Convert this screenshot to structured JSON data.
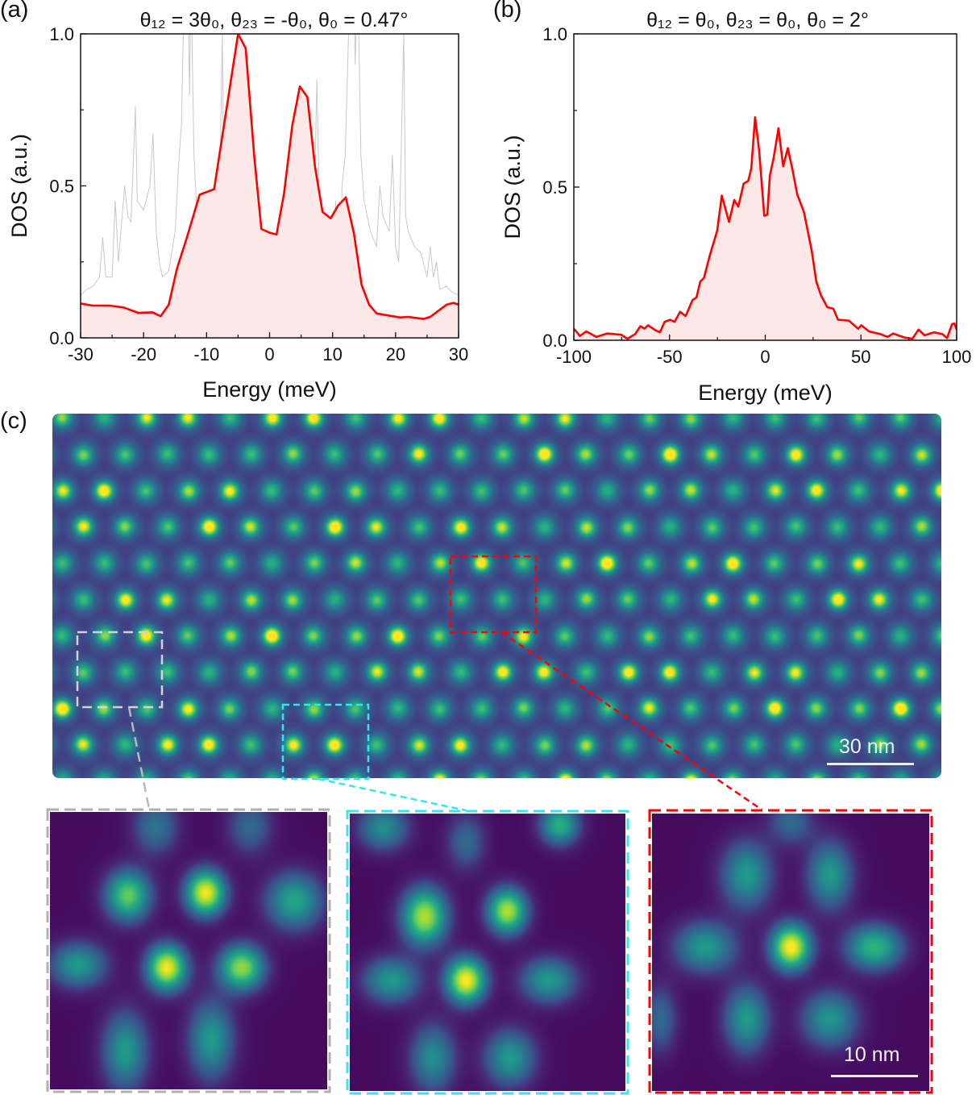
{
  "chart_data": [
    {
      "panel_label": "(a)",
      "type": "line",
      "title": "θ₁₂ = 3θ₀, θ₂₃ = -θ₀, θ₀ = 0.47°",
      "xlabel": "Energy (meV)",
      "ylabel": "DOS (a.u.)",
      "xlim": [
        -30,
        30
      ],
      "ylim": [
        0,
        1.0
      ],
      "x_ticks": [
        -30,
        -20,
        -10,
        0,
        10,
        20,
        30
      ],
      "x_tick_labels": [
        "-30",
        "-20",
        "-10",
        "0",
        "10",
        "20",
        "30"
      ],
      "y_ticks": [
        0,
        0.5,
        1.0
      ],
      "y_tick_labels": [
        "0.0",
        "0.5",
        "1.0"
      ],
      "grid": false,
      "series": [
        {
          "color": "#777777",
          "style": "thin-gray",
          "x": [
            -30,
            -29,
            -28,
            -27,
            -26.5,
            -26,
            -25,
            -24.5,
            -24,
            -23,
            -22.5,
            -22,
            -21.3,
            -21,
            -20,
            -19,
            -18.5,
            -18,
            -17.5,
            -17,
            -16,
            -15,
            -14.5,
            -14,
            -13.5,
            -13,
            -12.7,
            -12.5,
            -12,
            -11.5,
            -11,
            -10.8,
            -10.5,
            -10,
            -9.5,
            -9,
            -8.5,
            -8,
            -7.5,
            -7.2,
            -7,
            -6,
            -5,
            -4,
            -3,
            -2,
            -1.5,
            -1,
            0,
            1,
            1.5,
            2,
            3,
            4,
            5,
            6,
            7,
            7.5,
            8,
            9,
            10,
            10.5,
            11,
            11.5,
            12,
            12.8,
            13.3,
            13.6,
            14,
            14.5,
            15,
            16,
            17,
            17.5,
            18,
            19,
            19.5,
            20,
            20.5,
            21.3,
            21.6,
            22,
            23,
            24,
            25,
            25.5,
            26,
            26.5,
            27,
            28,
            29,
            30
          ],
          "y": [
            0.14,
            0.16,
            0.17,
            0.2,
            0.33,
            0.2,
            0.2,
            0.45,
            0.25,
            0.5,
            0.4,
            0.38,
            0.76,
            0.45,
            0.42,
            0.5,
            0.67,
            0.35,
            0.25,
            0.2,
            0.22,
            0.35,
            0.55,
            0.7,
            1.2,
            1.2,
            0.8,
            1.2,
            0.6,
            0.4,
            0.25,
            0.1,
            0.35,
            0.33,
            0.25,
            0.3,
            0.35,
            0.4,
            1.0,
            0.3,
            0.2,
            0.15,
            0.1,
            0.07,
            0.05,
            0.1,
            0.03,
            0.01,
            0.0,
            0.02,
            0.1,
            0.05,
            0.06,
            0.1,
            0.14,
            0.18,
            0.3,
            0.85,
            0.35,
            0.4,
            0.3,
            0.45,
            0.1,
            0.5,
            0.6,
            1.2,
            1.2,
            0.9,
            1.2,
            0.6,
            0.45,
            0.35,
            0.3,
            0.5,
            0.4,
            0.35,
            0.6,
            0.3,
            0.25,
            1.0,
            0.4,
            0.35,
            0.3,
            0.28,
            0.2,
            0.3,
            0.2,
            0.25,
            0.16,
            0.17,
            0.15,
            0.14
          ]
        },
        {
          "color": "#ff0000",
          "fill": "#fde8e8",
          "x": [
            -30,
            -28.1,
            -25.4,
            -23.2,
            -20.8,
            -18.6,
            -17.3,
            -16,
            -14.7,
            -13.2,
            -11.1,
            -8.8,
            -5,
            -3.8,
            -2.4,
            -1.3,
            0,
            1.1,
            2.3,
            3.6,
            4.8,
            6,
            7.2,
            8.4,
            9.7,
            10.9,
            12.1,
            13.4,
            14.6,
            15.8,
            17,
            20.7,
            22,
            24.4,
            25.5,
            28.1,
            29.2,
            30
          ],
          "y": [
            0.113,
            0.106,
            0.106,
            0.1,
            0.082,
            0.084,
            0.071,
            0.109,
            0.228,
            0.325,
            0.471,
            0.489,
            1.0,
            0.953,
            0.59,
            0.358,
            0.346,
            0.34,
            0.476,
            0.698,
            0.827,
            0.792,
            0.564,
            0.414,
            0.393,
            0.436,
            0.462,
            0.343,
            0.175,
            0.109,
            0.08,
            0.067,
            0.069,
            0.062,
            0.069,
            0.109,
            0.115,
            0.109
          ]
        }
      ]
    },
    {
      "panel_label": "(b)",
      "type": "line",
      "title": "θ₁₂ = θ₀, θ₂₃ = θ₀, θ₀ = 2°",
      "xlabel": "Energy (meV)",
      "ylabel": "DOS (a.u.)",
      "xlim": [
        -100,
        100
      ],
      "ylim": [
        0,
        1.0
      ],
      "x_ticks": [
        -100,
        -50,
        0,
        50,
        100
      ],
      "x_tick_labels": [
        "-100",
        "-50",
        "0",
        "50",
        "100"
      ],
      "y_ticks": [
        0,
        0.5,
        1.0
      ],
      "y_tick_labels": [
        "0.0",
        "0.5",
        "1.0"
      ],
      "grid": false,
      "series": [
        {
          "color": "#ff0000",
          "fill": "#fde8e8",
          "x": [
            -100,
            -96.8,
            -93.5,
            -88.2,
            -82.5,
            -75.2,
            -72,
            -68,
            -65.2,
            -63.1,
            -61.2,
            -57.4,
            -55,
            -52.6,
            -49.7,
            -47.4,
            -44.5,
            -41.6,
            -38,
            -35.9,
            -34,
            -32,
            -29.1,
            -25.1,
            -22.7,
            -18.9,
            -16.2,
            -14.1,
            -11.3,
            -8.9,
            -7.3,
            -5.3,
            -3.2,
            -0.5,
            1.1,
            2.4,
            4.5,
            6.9,
            9.4,
            11.8,
            14.2,
            16.7,
            20.2,
            24.3,
            26.7,
            29.1,
            32.4,
            35.6,
            38,
            43.7,
            48.5,
            50.2,
            54.2,
            60.2,
            63.9,
            66.8,
            72.8,
            76.9,
            80.1,
            83.3,
            88.2,
            92.6,
            95,
            97.6,
            98.8,
            100
          ],
          "y": [
            0.038,
            0.014,
            0.029,
            0.011,
            0.022,
            0.018,
            0.005,
            0.02,
            0.046,
            0.038,
            0.049,
            0.033,
            0.026,
            0.06,
            0.067,
            0.06,
            0.093,
            0.079,
            0.131,
            0.14,
            0.191,
            0.204,
            0.274,
            0.358,
            0.472,
            0.386,
            0.458,
            0.436,
            0.511,
            0.52,
            0.561,
            0.728,
            0.62,
            0.406,
            0.41,
            0.537,
            0.599,
            0.692,
            0.568,
            0.627,
            0.559,
            0.476,
            0.419,
            0.292,
            0.191,
            0.147,
            0.108,
            0.103,
            0.067,
            0.064,
            0.038,
            0.049,
            0.029,
            0.02,
            0.011,
            0.022,
            0.009,
            0.005,
            0.035,
            0.016,
            0.026,
            0.02,
            0.007,
            0.053,
            0.055,
            0.035
          ]
        }
      ]
    }
  ],
  "panel_c": {
    "panel_label": "(c)",
    "type": "heatmap",
    "colormap": "viridis",
    "scale_bar_main": "30 nm",
    "scale_bar_inset": "10 nm",
    "inset_frame_colors": [
      "#b0b0b0",
      "#33e6f0",
      "#ff0000"
    ]
  }
}
